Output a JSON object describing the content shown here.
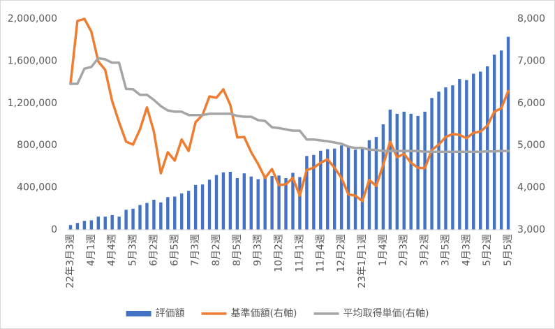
{
  "chart_data": {
    "type": "bar",
    "categories": [
      "22年3月3週",
      null,
      null,
      "4月1週",
      null,
      null,
      "4月4週",
      null,
      null,
      "5月3週",
      null,
      null,
      "6月2週",
      null,
      null,
      "6月5週",
      null,
      null,
      "7月3週",
      null,
      null,
      "8月2週",
      null,
      null,
      "8月5週",
      null,
      null,
      "9月3週",
      null,
      null,
      "10月2週",
      null,
      null,
      "11月1週",
      null,
      null,
      "11月4週",
      null,
      null,
      "12月2週",
      null,
      null,
      "23年1月1週",
      null,
      null,
      "1月4週",
      null,
      null,
      "2月3週",
      null,
      null,
      "3月2週",
      null,
      null,
      "3月5週",
      null,
      null,
      "4月3週",
      null,
      null,
      "5月2週",
      null,
      null,
      "5月5週"
    ],
    "series": [
      {
        "name": "評価額",
        "type": "bar",
        "color": "#4472c4",
        "values": [
          45000,
          65000,
          85000,
          90000,
          125000,
          125000,
          140000,
          125000,
          190000,
          200000,
          235000,
          255000,
          285000,
          260000,
          310000,
          315000,
          345000,
          370000,
          425000,
          430000,
          475000,
          520000,
          545000,
          550000,
          490000,
          535000,
          505000,
          480000,
          500000,
          510000,
          515000,
          490000,
          540000,
          500000,
          700000,
          710000,
          750000,
          765000,
          770000,
          800000,
          790000,
          760000,
          770000,
          850000,
          880000,
          1000000,
          1140000,
          1100000,
          1120000,
          1100000,
          1080000,
          1120000,
          1250000,
          1310000,
          1350000,
          1370000,
          1430000,
          1420000,
          1480000,
          1500000,
          1550000,
          1660000,
          1700000,
          1830000
        ]
      },
      {
        "name": "基準価額(右軸)",
        "type": "line",
        "axis": "y2",
        "color": "#ed7d31",
        "values": [
          6460,
          7950,
          8000,
          7700,
          6990,
          6790,
          6050,
          5550,
          5090,
          5020,
          5380,
          5900,
          5330,
          4340,
          4840,
          4640,
          5140,
          4870,
          5550,
          5720,
          6160,
          6130,
          6330,
          5960,
          5190,
          5200,
          4840,
          4560,
          4230,
          4440,
          4060,
          4080,
          4230,
          3810,
          4420,
          4470,
          4590,
          4670,
          4470,
          4230,
          3840,
          3810,
          3680,
          4180,
          4040,
          4540,
          5090,
          4720,
          4800,
          4590,
          4470,
          4460,
          4890,
          5020,
          5200,
          5270,
          5250,
          5170,
          5300,
          5330,
          5470,
          5800,
          5880,
          6290
        ]
      },
      {
        "name": "平均取得単価(右軸)",
        "type": "line",
        "axis": "y2",
        "color": "#a5a5a5",
        "values": [
          6460,
          6460,
          6820,
          6860,
          7070,
          7040,
          6960,
          6960,
          6340,
          6330,
          6200,
          6200,
          6080,
          5930,
          5830,
          5800,
          5800,
          5720,
          5720,
          5720,
          5750,
          5750,
          5750,
          5750,
          5700,
          5680,
          5680,
          5600,
          5580,
          5430,
          5410,
          5380,
          5350,
          5350,
          5140,
          5140,
          5120,
          5100,
          5070,
          5040,
          4970,
          4940,
          4940,
          4900,
          4890,
          4870,
          4870,
          4870,
          4870,
          4870,
          4870,
          4850,
          4850,
          4850,
          4850,
          4850,
          4850,
          4850,
          4850,
          4850,
          4860,
          4860,
          4870,
          4870
        ]
      }
    ],
    "ylim": [
      0,
      2000000
    ],
    "yticks": [
      0,
      {
        "value": 400000,
        "label": "400,000"
      },
      {
        "value": 800000,
        "label": "800,000"
      },
      {
        "value": 1200000,
        "label": "1,200,000"
      },
      {
        "value": 1600000,
        "label": "1,600,000"
      },
      {
        "value": 2000000,
        "label": "2,000,000"
      }
    ],
    "y2lim": [
      3000,
      8000
    ],
    "y2ticks": [
      {
        "value": 3000,
        "label": "3,000"
      },
      {
        "value": 4000,
        "label": "4,000"
      },
      {
        "value": 5000,
        "label": "5,000"
      },
      {
        "value": 6000,
        "label": "6,000"
      },
      {
        "value": 7000,
        "label": "7,000"
      },
      {
        "value": 8000,
        "label": "8,000"
      }
    ],
    "grid": false,
    "legend": "bottom"
  }
}
